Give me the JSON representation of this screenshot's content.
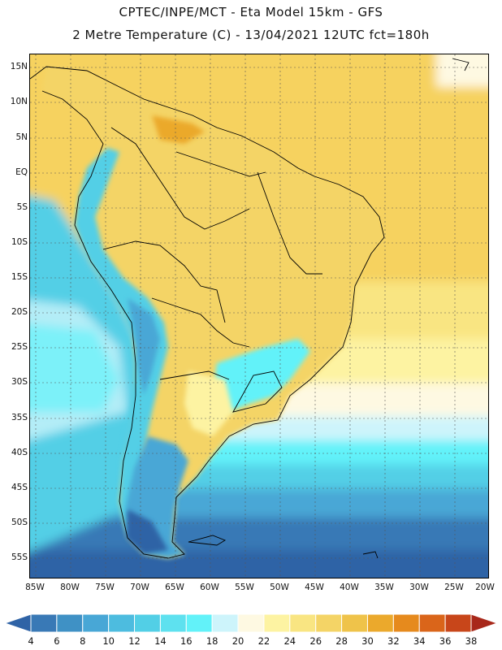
{
  "header": {
    "line1": "CPTEC/INPE/MCT -  Eta Model 15km - GFS",
    "line2": "2 Metre Temperature (C) - 13/04/2021 12UTC fct=180h"
  },
  "axes": {
    "lat_labels": [
      "15N",
      "10N",
      "5N",
      "EQ",
      "5S",
      "10S",
      "15S",
      "20S",
      "25S",
      "30S",
      "35S",
      "40S",
      "45S",
      "50S",
      "55S"
    ],
    "lon_labels": [
      "85W",
      "80W",
      "75W",
      "70W",
      "65W",
      "60W",
      "55W",
      "50W",
      "45W",
      "40W",
      "35W",
      "30W",
      "25W",
      "20W"
    ]
  },
  "legend": {
    "values": [
      "4",
      "6",
      "8",
      "10",
      "12",
      "14",
      "16",
      "18",
      "20",
      "22",
      "24",
      "26",
      "28",
      "30",
      "32",
      "34",
      "36",
      "38"
    ],
    "colors": [
      "#2f63a6",
      "#3979b6",
      "#3f91c5",
      "#48a7d6",
      "#4dbcdf",
      "#52cfe6",
      "#5ee1ef",
      "#62f2f9",
      "#cdf4fb",
      "#fef9e2",
      "#fdf3a2",
      "#f9e582",
      "#f4d466",
      "#efc34a",
      "#eba92c",
      "#e68a1d",
      "#da651a",
      "#c8461a",
      "#a8281a"
    ]
  },
  "map": {
    "variable": "2 Metre Temperature (C)",
    "lat_range": [
      -57.5,
      16.5
    ],
    "lon_range": [
      -86,
      -19.5
    ]
  }
}
